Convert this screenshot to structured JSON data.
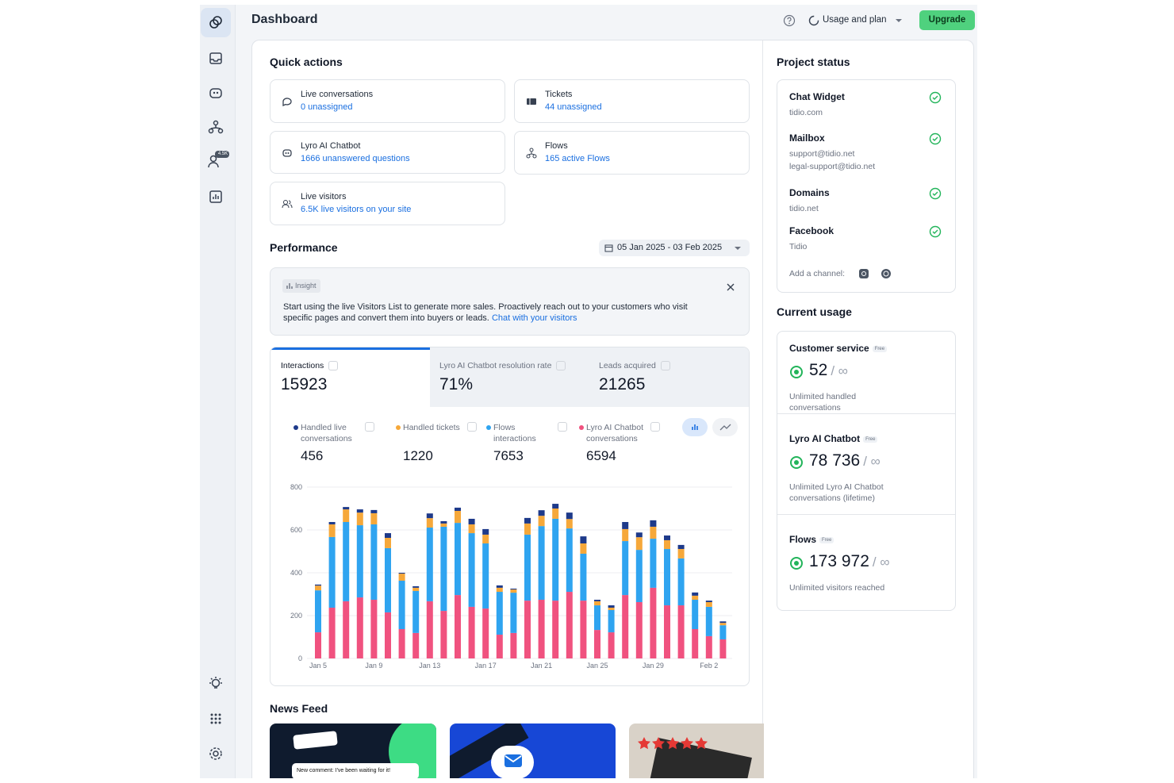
{
  "sidebar": {
    "badge": "4.5K"
  },
  "header": {
    "title": "Dashboard",
    "usage": "Usage and plan",
    "upgrade": "Upgrade"
  },
  "quick_actions": {
    "title": "Quick actions",
    "items": [
      {
        "label": "Live conversations",
        "link": "0 unassigned"
      },
      {
        "label": "Tickets",
        "link": "44 unassigned"
      },
      {
        "label": "Lyro AI Chatbot",
        "link": "1666 unanswered questions"
      },
      {
        "label": "Flows",
        "link": "165 active Flows"
      },
      {
        "label": "Live visitors",
        "link": "6.5K live visitors on your site"
      }
    ]
  },
  "performance": {
    "title": "Performance",
    "date_range": "05 Jan 2025 - 03 Feb 2025",
    "insight": {
      "tag": "Insight",
      "text": "Start using the live Visitors List to generate more sales. Proactively reach out to your customers who visit specific pages and convert them into buyers or leads.",
      "link": "Chat with your visitors"
    },
    "tabs": [
      {
        "label": "Interactions",
        "value": "15923"
      },
      {
        "label": "Lyro AI Chatbot resolution rate",
        "value": "71%"
      },
      {
        "label": "Leads acquired",
        "value": "21265"
      }
    ]
  },
  "chart_data": {
    "type": "bar",
    "stacked": true,
    "categories": [
      "Jan 5",
      null,
      null,
      null,
      "Jan 9",
      null,
      null,
      null,
      "Jan 13",
      null,
      null,
      null,
      "Jan 17",
      null,
      null,
      null,
      "Jan 21",
      null,
      null,
      null,
      "Jan 25",
      null,
      null,
      null,
      "Jan 29",
      null,
      null,
      null,
      "Feb 2",
      null
    ],
    "series": [
      {
        "name": "Handled live conversations",
        "total": 456,
        "color": "#1e3a8a",
        "values": [
          5,
          11,
          11,
          15,
          15,
          22,
          4,
          7,
          22,
          11,
          15,
          26,
          26,
          11,
          4,
          26,
          26,
          22,
          30,
          33,
          7,
          11,
          33,
          22,
          30,
          22,
          19,
          15,
          7,
          7
        ]
      },
      {
        "name": "Handled tickets",
        "total": 1220,
        "color": "#f6a83a",
        "values": [
          22,
          59,
          59,
          59,
          52,
          48,
          33,
          15,
          44,
          15,
          56,
          41,
          41,
          19,
          15,
          52,
          48,
          48,
          44,
          48,
          19,
          11,
          56,
          59,
          56,
          41,
          44,
          19,
          22,
          11
        ]
      },
      {
        "name": "Flows interactions",
        "total": 7653,
        "color": "#2fa4f0",
        "values": [
          196,
          330,
          370,
          337,
          352,
          300,
          226,
          196,
          344,
          393,
          337,
          344,
          304,
          200,
          188,
          308,
          344,
          382,
          296,
          219,
          115,
          104,
          252,
          244,
          229,
          263,
          219,
          137,
          137,
          66
        ]
      },
      {
        "name": "Lyro AI Chatbot conversations",
        "total": 6594,
        "color": "#f0527f",
        "values": [
          122,
          237,
          267,
          285,
          274,
          215,
          137,
          119,
          267,
          222,
          296,
          241,
          233,
          111,
          119,
          270,
          274,
          270,
          311,
          270,
          133,
          122,
          296,
          263,
          330,
          248,
          248,
          137,
          104,
          89
        ]
      }
    ],
    "ylim": [
      0,
      800
    ],
    "yticks": [
      0,
      200,
      400,
      600,
      800
    ],
    "grid": true
  },
  "news_feed": {
    "title": "News Feed",
    "comment": "New comment: I've been waiting for it!"
  },
  "project_status": {
    "title": "Project status",
    "items": [
      {
        "name": "Chat Widget",
        "details": [
          "tidio.com"
        ]
      },
      {
        "name": "Mailbox",
        "details": [
          "support@tidio.net",
          "legal-support@tidio.net"
        ]
      },
      {
        "name": "Domains",
        "details": [
          "tidio.net"
        ]
      },
      {
        "name": "Facebook",
        "details": [
          "Tidio"
        ]
      }
    ],
    "add_channel": "Add a channel:"
  },
  "current_usage": {
    "title": "Current usage",
    "items": [
      {
        "name": "Customer service",
        "badge": "Free",
        "value": "52",
        "limit": "/ ∞",
        "note": "Unlimited handled conversations"
      },
      {
        "name": "Lyro AI Chatbot",
        "badge": "Free",
        "value": "78 736",
        "limit": "/ ∞",
        "note": "Unlimited Lyro AI Chatbot conversations (lifetime)"
      },
      {
        "name": "Flows",
        "badge": "Free",
        "value": "173 972",
        "limit": "/ ∞",
        "note": "Unlimited visitors reached"
      }
    ]
  }
}
